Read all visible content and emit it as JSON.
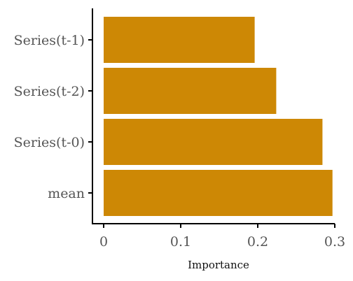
{
  "chart_data": {
    "type": "bar",
    "orientation": "horizontal",
    "categories": [
      "Series(t-1)",
      "Series(t-2)",
      "Series(t-0)",
      "mean"
    ],
    "values": [
      0.196,
      0.224,
      0.284,
      0.297
    ],
    "xlabel": "Importance",
    "ylabel": "",
    "xlim": [
      0,
      0.3
    ],
    "xticks": [
      {
        "value": 0,
        "label": "0"
      },
      {
        "value": 0.1,
        "label": "0.1"
      },
      {
        "value": 0.2,
        "label": "0.2"
      },
      {
        "value": 0.3,
        "label": "0.3"
      }
    ],
    "bar_color": "#CD8805",
    "axis_color": "#000000",
    "grid": false,
    "legend": "none"
  }
}
